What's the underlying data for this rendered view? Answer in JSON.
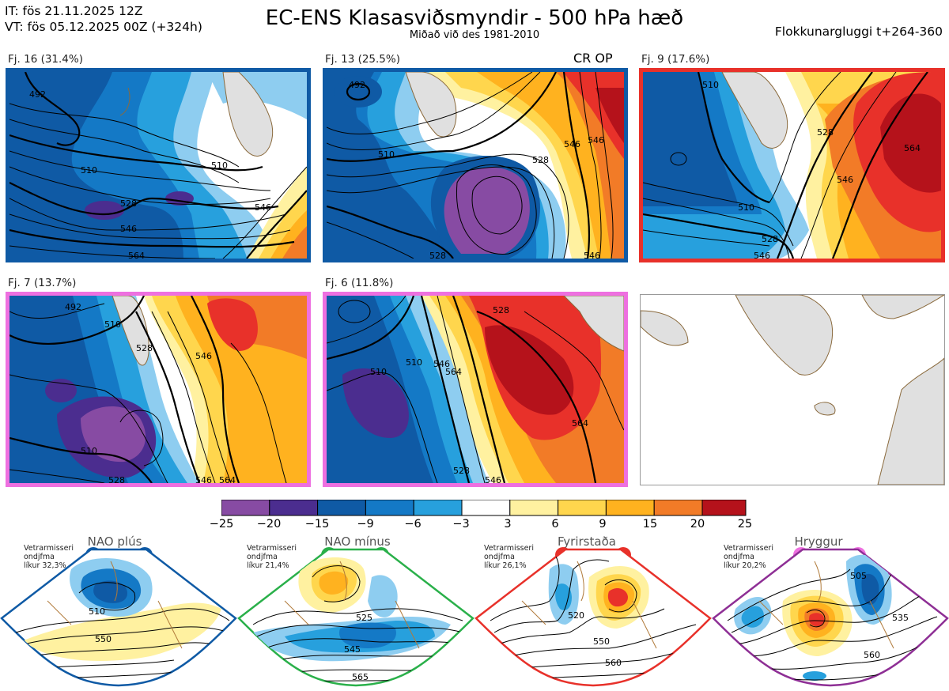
{
  "header": {
    "it": "IT: fös 21.11.2025 12Z",
    "vt": "VT: fös 05.12.2025 00Z  (+324h)",
    "title": "EC-ENS Klasasviðsmyndir - 500 hPa hæð",
    "subtitle": "Miðað við des 1981-2010",
    "window": "Flokkunargluggi t+264-360"
  },
  "panels": [
    {
      "label": "Fj. 16 (31.4%)",
      "frame_color": "#0f5aa5",
      "contours": [
        "492",
        "510",
        "510",
        "528",
        "546",
        "546",
        "564"
      ]
    },
    {
      "label": "Fj. 13 (25.5%)",
      "frame_color": "#0f5aa5",
      "extra": "CR OP",
      "contours": [
        "492",
        "510",
        "528",
        "528",
        "546",
        "546",
        "546"
      ]
    },
    {
      "label": "Fj. 9 (17.6%)",
      "frame_color": "#e8312a",
      "contours": [
        "510",
        "510",
        "528",
        "528",
        "546",
        "546",
        "564"
      ]
    },
    {
      "label": "Fj. 7 (13.7%)",
      "frame_color": "#ee70e0",
      "contours": [
        "492",
        "510",
        "510",
        "528",
        "528",
        "546",
        "546",
        "564"
      ]
    },
    {
      "label": "Fj. 6 (11.8%)",
      "frame_color": "#ee70e0",
      "contours": [
        "510",
        "510",
        "528",
        "528",
        "546",
        "546",
        "564",
        "564"
      ]
    }
  ],
  "colorbar": {
    "ticks": [
      "−25",
      "−20",
      "−15",
      "−9",
      "−6",
      "−3",
      "3",
      "6",
      "9",
      "15",
      "20",
      "25"
    ],
    "colors": [
      "#874ba3",
      "#4b2d8f",
      "#0f5aa5",
      "#1479c6",
      "#27a0dd",
      "#8ecdf0",
      "#ffffff",
      "#fff1a0",
      "#ffd64d",
      "#ffb21f",
      "#f27b27",
      "#e8312a",
      "#b5121b"
    ]
  },
  "regimes": [
    {
      "name": "NAO plús",
      "info": [
        "Vetrarmisseri",
        "ondjfma",
        "líkur 32,3%"
      ],
      "color": "#0f5aa5",
      "labels": [
        "510",
        "550"
      ]
    },
    {
      "name": "NAO mínus",
      "info": [
        "Vetrarmisseri",
        "ondjfma",
        "líkur 21,4%"
      ],
      "color": "#2ab04a",
      "labels": [
        "525",
        "545",
        "565"
      ]
    },
    {
      "name": "Fyrirstaða",
      "info": [
        "Vetrarmisseri",
        "ondjfma",
        "líkur 26,1%"
      ],
      "color": "#e8312a",
      "labels": [
        "520",
        "550",
        "560"
      ]
    },
    {
      "name": "Hryggur",
      "info": [
        "Vetrarmisseri",
        "ondjfma",
        "líkur 20,2%"
      ],
      "color": "#ee70e0",
      "labels": [
        "505",
        "535",
        "560"
      ]
    }
  ]
}
